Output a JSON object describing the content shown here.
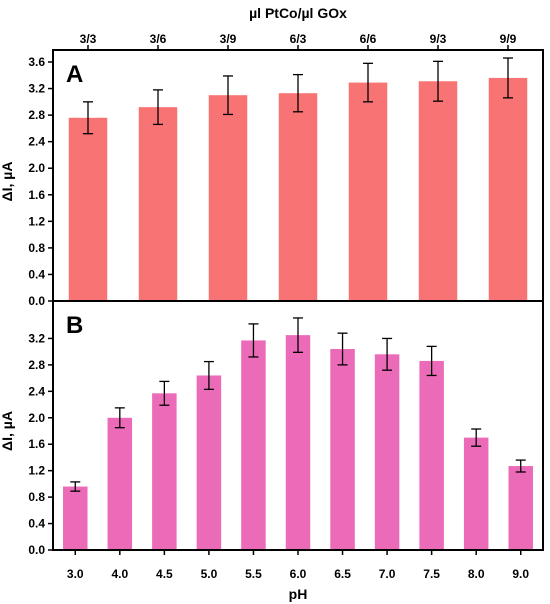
{
  "chart_data": [
    {
      "panel_label": "A",
      "type": "bar",
      "x_axis_position": "top",
      "xlabel": "µl PtCo/µl GOx",
      "ylabel": "ΔI, µA",
      "categories": [
        "3/3",
        "3/6",
        "3/9",
        "6/3",
        "6/6",
        "9/3",
        "9/9"
      ],
      "values": [
        2.76,
        2.92,
        3.1,
        3.13,
        3.29,
        3.31,
        3.36
      ],
      "errors": [
        0.24,
        0.26,
        0.29,
        0.28,
        0.29,
        0.3,
        0.3
      ],
      "ylim": [
        0,
        3.6
      ],
      "yticks": [
        "0.0",
        "0.4",
        "0.8",
        "1.2",
        "1.6",
        "2.0",
        "2.4",
        "2.8",
        "3.2",
        "3.6"
      ],
      "bar_color": "#f87474",
      "grid": false
    },
    {
      "panel_label": "B",
      "type": "bar",
      "x_axis_position": "bottom",
      "xlabel": "pH",
      "ylabel": "ΔI, µA",
      "categories": [
        "3.0",
        "4.0",
        "4.5",
        "5.0",
        "5.5",
        "6.0",
        "6.5",
        "7.0",
        "7.5",
        "8.0",
        "9.0"
      ],
      "values": [
        0.96,
        2.0,
        2.37,
        2.64,
        3.17,
        3.25,
        3.04,
        2.96,
        2.86,
        1.7,
        1.27
      ],
      "errors": [
        0.07,
        0.15,
        0.18,
        0.21,
        0.25,
        0.26,
        0.24,
        0.24,
        0.22,
        0.13,
        0.09
      ],
      "ylim": [
        0,
        3.6
      ],
      "yticks": [
        "0.0",
        "0.4",
        "0.8",
        "1.2",
        "1.6",
        "2.0",
        "2.4",
        "2.8",
        "3.2"
      ],
      "bar_color": "#ec6bb8",
      "grid": false
    }
  ]
}
